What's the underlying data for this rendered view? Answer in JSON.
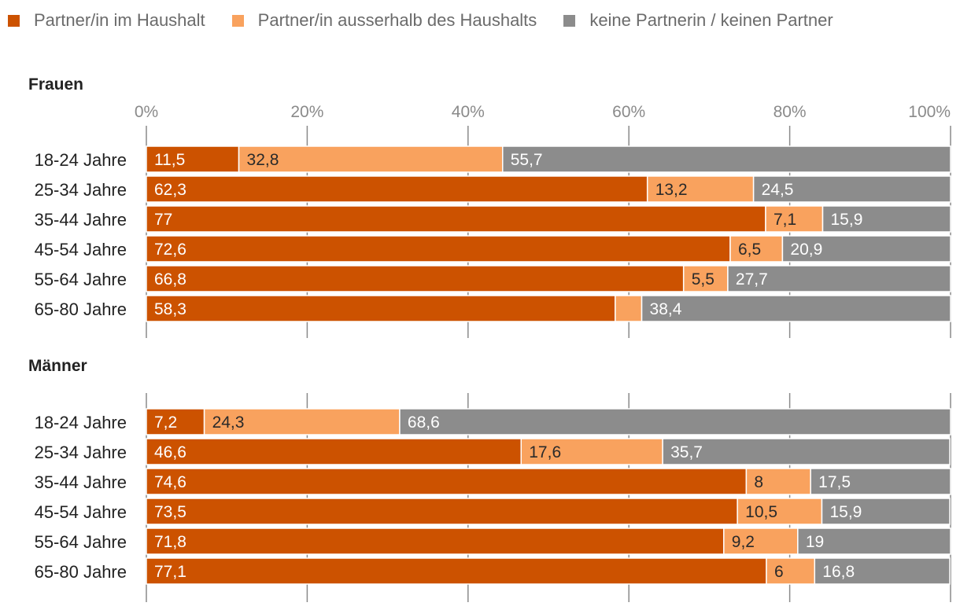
{
  "legend": [
    {
      "label": "Partner/in im Haushalt",
      "color": "#cc5200"
    },
    {
      "label": "Partner/in ausserhalb des Haushalts",
      "color": "#f9a25e"
    },
    {
      "label": "keine Partnerin / keinen Partner",
      "color": "#8c8c8c"
    }
  ],
  "chart_data": [
    {
      "type": "bar",
      "orientation": "horizontal",
      "stacked": true,
      "title": "Frauen",
      "xlim": [
        0,
        100
      ],
      "xticks": [
        "0%",
        "20%",
        "40%",
        "60%",
        "80%",
        "100%"
      ],
      "categories": [
        "18-24 Jahre",
        "25-34 Jahre",
        "35-44 Jahre",
        "45-54 Jahre",
        "55-64 Jahre",
        "65-80 Jahre"
      ],
      "series": [
        {
          "name": "Partner/in im Haushalt",
          "color": "#cc5200",
          "values": [
            11.5,
            62.3,
            77,
            72.6,
            66.8,
            58.3
          ],
          "labels": [
            "11,5",
            "62,3",
            "77",
            "72,6",
            "66,8",
            "58,3"
          ]
        },
        {
          "name": "Partner/in ausserhalb des Haushalts",
          "color": "#f9a25e",
          "values": [
            32.8,
            13.2,
            7.1,
            6.5,
            5.5,
            3.3
          ],
          "labels": [
            "32,8",
            "13,2",
            "7,1",
            "6,5",
            "5,5",
            ""
          ]
        },
        {
          "name": "keine Partnerin / keinen Partner",
          "color": "#8c8c8c",
          "values": [
            55.7,
            24.5,
            15.9,
            20.9,
            27.7,
            38.4
          ],
          "labels": [
            "55,7",
            "24,5",
            "15,9",
            "20,9",
            "27,7",
            "38,4"
          ]
        }
      ]
    },
    {
      "type": "bar",
      "orientation": "horizontal",
      "stacked": true,
      "title": "Männer",
      "xlim": [
        0,
        100
      ],
      "xticks": [],
      "categories": [
        "18-24 Jahre",
        "25-34 Jahre",
        "35-44 Jahre",
        "45-54 Jahre",
        "55-64 Jahre",
        "65-80 Jahre"
      ],
      "series": [
        {
          "name": "Partner/in im Haushalt",
          "color": "#cc5200",
          "values": [
            7.2,
            46.6,
            74.6,
            73.5,
            71.8,
            77.1
          ],
          "labels": [
            "7,2",
            "46,6",
            "74,6",
            "73,5",
            "71,8",
            "77,1"
          ]
        },
        {
          "name": "Partner/in ausserhalb des Haushalts",
          "color": "#f9a25e",
          "values": [
            24.3,
            17.6,
            8,
            10.5,
            9.2,
            6
          ],
          "labels": [
            "24,3",
            "17,6",
            "8",
            "10,5",
            "9,2",
            "6"
          ]
        },
        {
          "name": "keine Partnerin / keinen Partner",
          "color": "#8c8c8c",
          "values": [
            68.6,
            35.7,
            17.5,
            15.9,
            19,
            16.8
          ],
          "labels": [
            "68,6",
            "35,7",
            "17,5",
            "15,9",
            "19",
            "16,8"
          ]
        }
      ]
    }
  ]
}
